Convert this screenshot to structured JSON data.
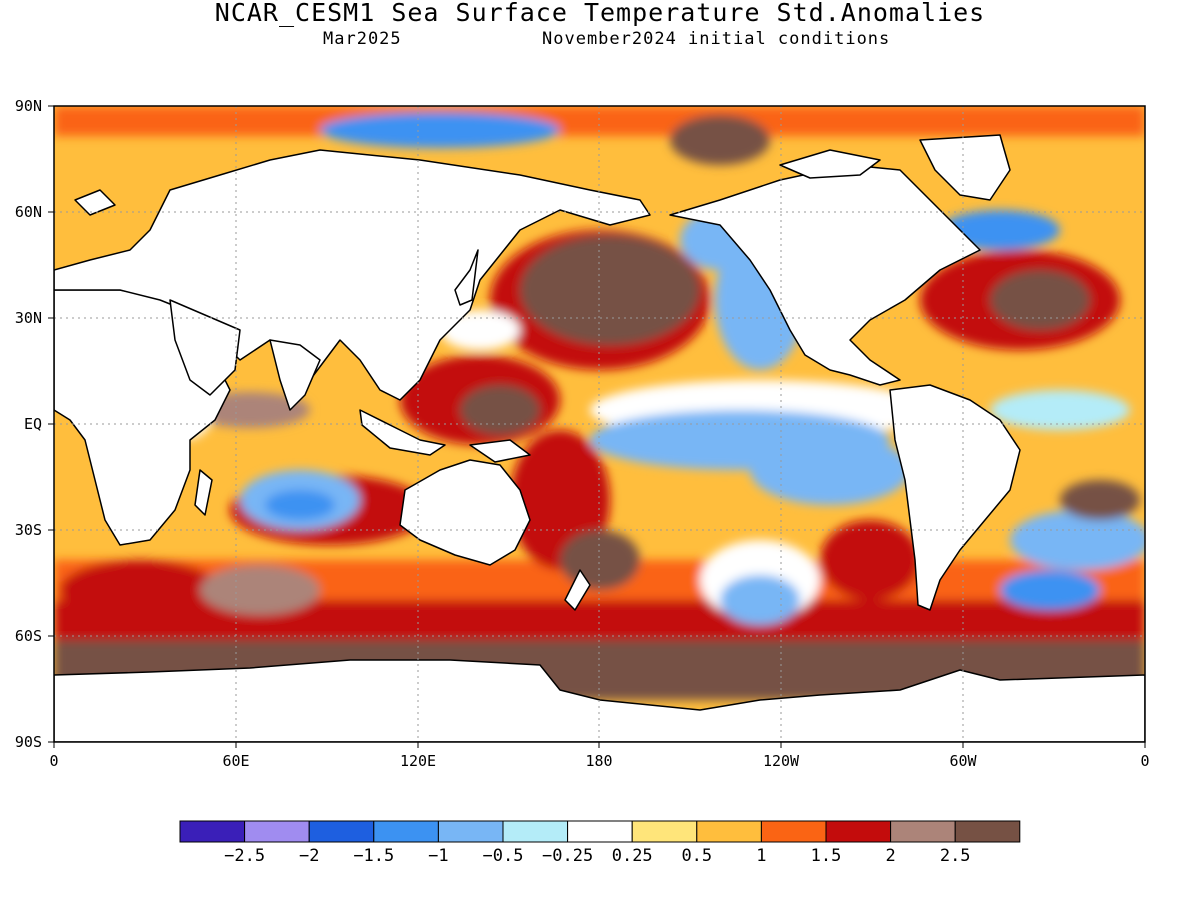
{
  "title": "NCAR_CESM1 Sea Surface Temperature Std.Anomalies",
  "subtitle_valid": "Mar2025",
  "subtitle_init": "November2024 initial conditions",
  "lat_labels": [
    "90N",
    "60N",
    "30N",
    "EQ",
    "30S",
    "60S",
    "90S"
  ],
  "lon_labels": [
    "0",
    "60E",
    "120E",
    "180",
    "120W",
    "60W",
    "0"
  ],
  "legend": {
    "colors": [
      "#3a1fb8",
      "#a08cf0",
      "#1e5fe0",
      "#3c92f2",
      "#78b6f5",
      "#b4ecf8",
      "#ffffff",
      "#ffe57a",
      "#ffbe3d",
      "#fa6414",
      "#c30c0c",
      "#ac8479",
      "#765144"
    ],
    "labels": [
      "−2.5",
      "−2",
      "−1.5",
      "−1",
      "−0.5",
      "−0.25",
      "0.25",
      "0.5",
      "1",
      "1.5",
      "2",
      "2.5"
    ]
  },
  "land_color": "#ffffff",
  "frame_color": "#000000"
}
